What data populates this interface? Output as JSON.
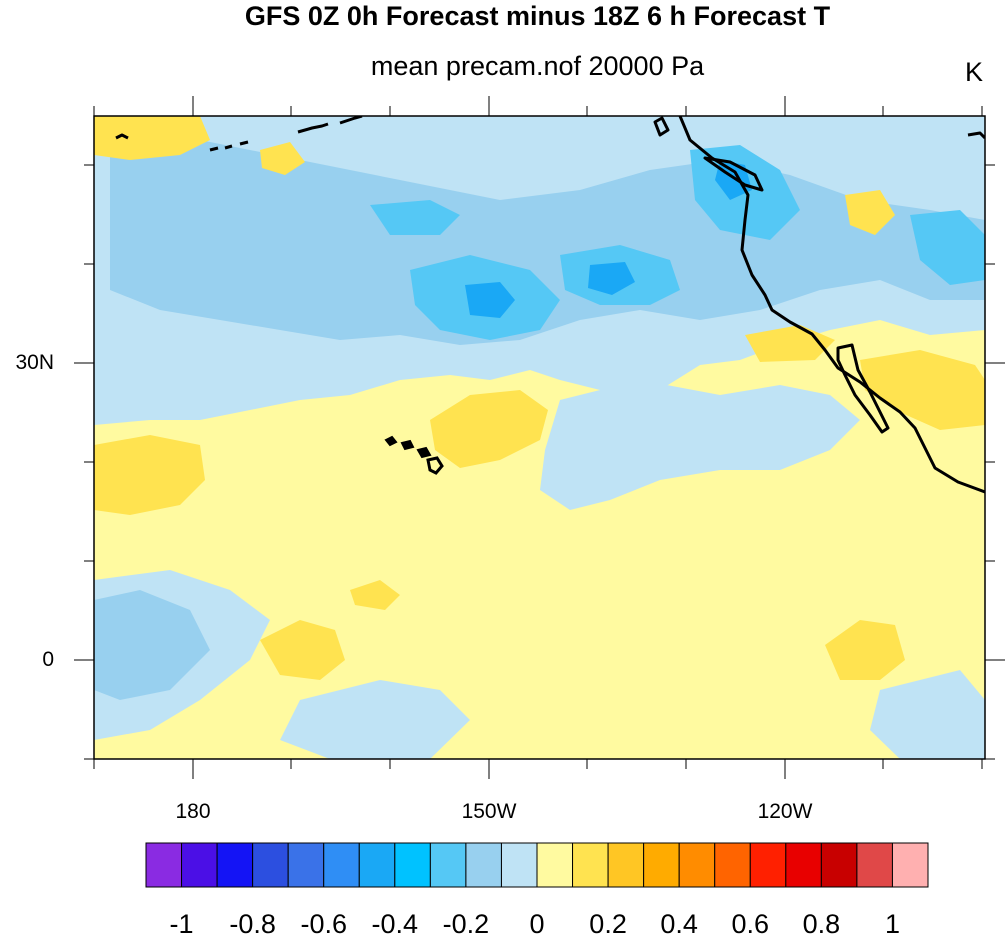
{
  "title": "GFS 0Z 0h Forecast minus 18Z 6 h Forecast T",
  "subtitle": "mean precam.nof 20000 Pa",
  "units": "K",
  "map": {
    "lat_range": [
      -10,
      45
    ],
    "lon_range": [
      "170E",
      "90W"
    ],
    "lat_tick_labels": [
      "30N",
      "0"
    ],
    "lon_tick_labels": [
      "180",
      "150W",
      "120W"
    ],
    "features": [
      "Hawaiian Islands",
      "North American west coast",
      "Baja California"
    ]
  },
  "colorbar": {
    "labels": [
      "-1",
      "-0.8",
      "-0.6",
      "-0.4",
      "-0.2",
      "0",
      "0.2",
      "0.4",
      "0.6",
      "0.8",
      "1"
    ],
    "colors": [
      "#8a2be2",
      "#4b0fe6",
      "#1414f5",
      "#2c4fe0",
      "#3a72e8",
      "#2f8ef5",
      "#1aa8f5",
      "#00c2ff",
      "#55c8f5",
      "#98d0ef",
      "#bfe3f5",
      "#fffaa0",
      "#ffe350",
      "#ffc624",
      "#ffab00",
      "#ff8c00",
      "#ff6400",
      "#ff2000",
      "#e80000",
      "#c80000",
      "#e04848",
      "#ffb0b0"
    ]
  },
  "field_colors": {
    "light_blue": "#bfe3f5",
    "mid_blue": "#98d0ef",
    "blue": "#55c8f5",
    "deep_blue": "#1aa8f5",
    "pale_yellow": "#fffaa0",
    "yellow": "#ffe350"
  }
}
